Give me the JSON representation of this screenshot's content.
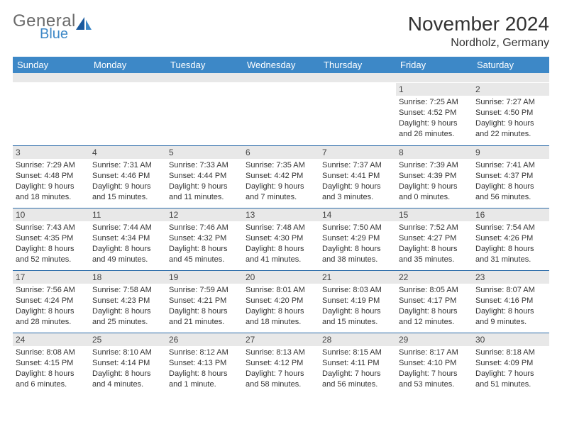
{
  "logo": {
    "general": "General",
    "blue": "Blue"
  },
  "title": "November 2024",
  "location": "Nordholz, Germany",
  "colors": {
    "header_bg": "#3d88c7",
    "header_text": "#ffffff",
    "daynum_bg": "#e8e8e8",
    "week_border": "#2a6aa8",
    "text": "#333333"
  },
  "day_names": [
    "Sunday",
    "Monday",
    "Tuesday",
    "Wednesday",
    "Thursday",
    "Friday",
    "Saturday"
  ],
  "weeks": [
    [
      {
        "day": "",
        "sunrise": "",
        "sunset": "",
        "daylight1": "",
        "daylight2": ""
      },
      {
        "day": "",
        "sunrise": "",
        "sunset": "",
        "daylight1": "",
        "daylight2": ""
      },
      {
        "day": "",
        "sunrise": "",
        "sunset": "",
        "daylight1": "",
        "daylight2": ""
      },
      {
        "day": "",
        "sunrise": "",
        "sunset": "",
        "daylight1": "",
        "daylight2": ""
      },
      {
        "day": "",
        "sunrise": "",
        "sunset": "",
        "daylight1": "",
        "daylight2": ""
      },
      {
        "day": "1",
        "sunrise": "Sunrise: 7:25 AM",
        "sunset": "Sunset: 4:52 PM",
        "daylight1": "Daylight: 9 hours",
        "daylight2": "and 26 minutes."
      },
      {
        "day": "2",
        "sunrise": "Sunrise: 7:27 AM",
        "sunset": "Sunset: 4:50 PM",
        "daylight1": "Daylight: 9 hours",
        "daylight2": "and 22 minutes."
      }
    ],
    [
      {
        "day": "3",
        "sunrise": "Sunrise: 7:29 AM",
        "sunset": "Sunset: 4:48 PM",
        "daylight1": "Daylight: 9 hours",
        "daylight2": "and 18 minutes."
      },
      {
        "day": "4",
        "sunrise": "Sunrise: 7:31 AM",
        "sunset": "Sunset: 4:46 PM",
        "daylight1": "Daylight: 9 hours",
        "daylight2": "and 15 minutes."
      },
      {
        "day": "5",
        "sunrise": "Sunrise: 7:33 AM",
        "sunset": "Sunset: 4:44 PM",
        "daylight1": "Daylight: 9 hours",
        "daylight2": "and 11 minutes."
      },
      {
        "day": "6",
        "sunrise": "Sunrise: 7:35 AM",
        "sunset": "Sunset: 4:42 PM",
        "daylight1": "Daylight: 9 hours",
        "daylight2": "and 7 minutes."
      },
      {
        "day": "7",
        "sunrise": "Sunrise: 7:37 AM",
        "sunset": "Sunset: 4:41 PM",
        "daylight1": "Daylight: 9 hours",
        "daylight2": "and 3 minutes."
      },
      {
        "day": "8",
        "sunrise": "Sunrise: 7:39 AM",
        "sunset": "Sunset: 4:39 PM",
        "daylight1": "Daylight: 9 hours",
        "daylight2": "and 0 minutes."
      },
      {
        "day": "9",
        "sunrise": "Sunrise: 7:41 AM",
        "sunset": "Sunset: 4:37 PM",
        "daylight1": "Daylight: 8 hours",
        "daylight2": "and 56 minutes."
      }
    ],
    [
      {
        "day": "10",
        "sunrise": "Sunrise: 7:43 AM",
        "sunset": "Sunset: 4:35 PM",
        "daylight1": "Daylight: 8 hours",
        "daylight2": "and 52 minutes."
      },
      {
        "day": "11",
        "sunrise": "Sunrise: 7:44 AM",
        "sunset": "Sunset: 4:34 PM",
        "daylight1": "Daylight: 8 hours",
        "daylight2": "and 49 minutes."
      },
      {
        "day": "12",
        "sunrise": "Sunrise: 7:46 AM",
        "sunset": "Sunset: 4:32 PM",
        "daylight1": "Daylight: 8 hours",
        "daylight2": "and 45 minutes."
      },
      {
        "day": "13",
        "sunrise": "Sunrise: 7:48 AM",
        "sunset": "Sunset: 4:30 PM",
        "daylight1": "Daylight: 8 hours",
        "daylight2": "and 41 minutes."
      },
      {
        "day": "14",
        "sunrise": "Sunrise: 7:50 AM",
        "sunset": "Sunset: 4:29 PM",
        "daylight1": "Daylight: 8 hours",
        "daylight2": "and 38 minutes."
      },
      {
        "day": "15",
        "sunrise": "Sunrise: 7:52 AM",
        "sunset": "Sunset: 4:27 PM",
        "daylight1": "Daylight: 8 hours",
        "daylight2": "and 35 minutes."
      },
      {
        "day": "16",
        "sunrise": "Sunrise: 7:54 AM",
        "sunset": "Sunset: 4:26 PM",
        "daylight1": "Daylight: 8 hours",
        "daylight2": "and 31 minutes."
      }
    ],
    [
      {
        "day": "17",
        "sunrise": "Sunrise: 7:56 AM",
        "sunset": "Sunset: 4:24 PM",
        "daylight1": "Daylight: 8 hours",
        "daylight2": "and 28 minutes."
      },
      {
        "day": "18",
        "sunrise": "Sunrise: 7:58 AM",
        "sunset": "Sunset: 4:23 PM",
        "daylight1": "Daylight: 8 hours",
        "daylight2": "and 25 minutes."
      },
      {
        "day": "19",
        "sunrise": "Sunrise: 7:59 AM",
        "sunset": "Sunset: 4:21 PM",
        "daylight1": "Daylight: 8 hours",
        "daylight2": "and 21 minutes."
      },
      {
        "day": "20",
        "sunrise": "Sunrise: 8:01 AM",
        "sunset": "Sunset: 4:20 PM",
        "daylight1": "Daylight: 8 hours",
        "daylight2": "and 18 minutes."
      },
      {
        "day": "21",
        "sunrise": "Sunrise: 8:03 AM",
        "sunset": "Sunset: 4:19 PM",
        "daylight1": "Daylight: 8 hours",
        "daylight2": "and 15 minutes."
      },
      {
        "day": "22",
        "sunrise": "Sunrise: 8:05 AM",
        "sunset": "Sunset: 4:17 PM",
        "daylight1": "Daylight: 8 hours",
        "daylight2": "and 12 minutes."
      },
      {
        "day": "23",
        "sunrise": "Sunrise: 8:07 AM",
        "sunset": "Sunset: 4:16 PM",
        "daylight1": "Daylight: 8 hours",
        "daylight2": "and 9 minutes."
      }
    ],
    [
      {
        "day": "24",
        "sunrise": "Sunrise: 8:08 AM",
        "sunset": "Sunset: 4:15 PM",
        "daylight1": "Daylight: 8 hours",
        "daylight2": "and 6 minutes."
      },
      {
        "day": "25",
        "sunrise": "Sunrise: 8:10 AM",
        "sunset": "Sunset: 4:14 PM",
        "daylight1": "Daylight: 8 hours",
        "daylight2": "and 4 minutes."
      },
      {
        "day": "26",
        "sunrise": "Sunrise: 8:12 AM",
        "sunset": "Sunset: 4:13 PM",
        "daylight1": "Daylight: 8 hours",
        "daylight2": "and 1 minute."
      },
      {
        "day": "27",
        "sunrise": "Sunrise: 8:13 AM",
        "sunset": "Sunset: 4:12 PM",
        "daylight1": "Daylight: 7 hours",
        "daylight2": "and 58 minutes."
      },
      {
        "day": "28",
        "sunrise": "Sunrise: 8:15 AM",
        "sunset": "Sunset: 4:11 PM",
        "daylight1": "Daylight: 7 hours",
        "daylight2": "and 56 minutes."
      },
      {
        "day": "29",
        "sunrise": "Sunrise: 8:17 AM",
        "sunset": "Sunset: 4:10 PM",
        "daylight1": "Daylight: 7 hours",
        "daylight2": "and 53 minutes."
      },
      {
        "day": "30",
        "sunrise": "Sunrise: 8:18 AM",
        "sunset": "Sunset: 4:09 PM",
        "daylight1": "Daylight: 7 hours",
        "daylight2": "and 51 minutes."
      }
    ]
  ]
}
